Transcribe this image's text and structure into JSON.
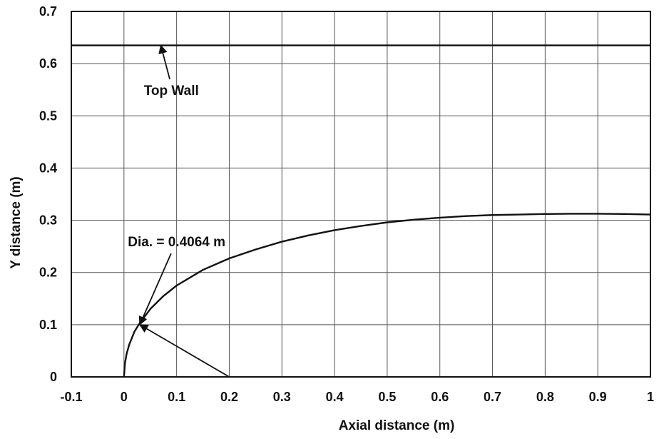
{
  "chart_data": {
    "type": "line",
    "title": "",
    "xlabel": "Axial distance (m)",
    "ylabel": "Y distance (m)",
    "xlim": [
      -0.1,
      1.0
    ],
    "ylim": [
      0.0,
      0.7
    ],
    "x_ticks": [
      -0.1,
      0.0,
      0.1,
      0.2,
      0.3,
      0.4,
      0.5,
      0.6,
      0.7,
      0.8,
      0.9,
      1.0
    ],
    "x_tick_labels": [
      "-0.1",
      "0",
      "0.1",
      "0.2",
      "0.3",
      "0.4",
      "0.5",
      "0.6",
      "0.7",
      "0.8",
      "0.9",
      "1"
    ],
    "y_ticks": [
      0.0,
      0.1,
      0.2,
      0.3,
      0.4,
      0.5,
      0.6,
      0.7
    ],
    "y_tick_labels": [
      "0",
      "0.1",
      "0.2",
      "0.3",
      "0.4",
      "0.5",
      "0.6",
      "0.7"
    ],
    "grid": true,
    "legend": "none",
    "series": [
      {
        "color": "#111111",
        "x": [
          0.0,
          0.002,
          0.005,
          0.01,
          0.02,
          0.03,
          0.05,
          0.075,
          0.1,
          0.15,
          0.2,
          0.25,
          0.3,
          0.35,
          0.4,
          0.45,
          0.5,
          0.55,
          0.6,
          0.65,
          0.7,
          0.75,
          0.8,
          0.85,
          0.9,
          0.95,
          1.0
        ],
        "y": [
          0.0,
          0.027,
          0.044,
          0.062,
          0.087,
          0.103,
          0.13,
          0.155,
          0.175,
          0.205,
          0.227,
          0.244,
          0.259,
          0.271,
          0.281,
          0.289,
          0.296,
          0.301,
          0.305,
          0.308,
          0.31,
          0.311,
          0.312,
          0.3125,
          0.3125,
          0.312,
          0.311
        ]
      },
      {
        "color": "#111111",
        "x": [
          -0.1,
          1.0
        ],
        "y": [
          0.635,
          0.635
        ]
      }
    ],
    "annotations": [
      {
        "text": "Top Wall",
        "arrow_to": [
          0.07,
          0.635
        ],
        "text_at": [
          0.09,
          0.54
        ]
      },
      {
        "text": "Dia. = 0.4064 m",
        "arrow_to": [
          0.03,
          0.1
        ],
        "text_at": [
          0.1,
          0.25
        ]
      },
      {
        "text": "",
        "arrow_to": [
          0.03,
          0.1
        ],
        "text_at": [
          0.2,
          0.0
        ]
      }
    ]
  }
}
